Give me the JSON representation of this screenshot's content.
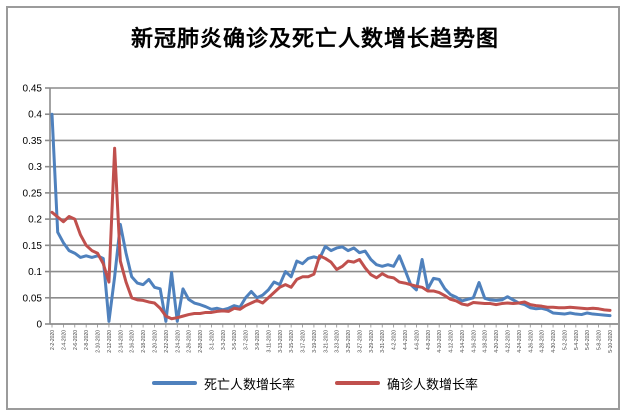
{
  "window": {
    "background": "#ffffff",
    "frame_border_color": "#9b9b9b"
  },
  "chart_data": {
    "type": "line",
    "title": "新冠肺炎确诊及死亡人数增长趋势图",
    "grid": "horizontal",
    "gridline_color": "#8c8c8c",
    "axis_color": "#8c8c8c",
    "x_tick_label_color": "#404040",
    "y_tick_label_color": "#000000",
    "legend_position": "bottom",
    "ylim": [
      0,
      0.45
    ],
    "y_ticks": [
      "0",
      "0.05",
      "0.1",
      "0.15",
      "0.2",
      "0.25",
      "0.3",
      "0.35",
      "0.4",
      "0.45"
    ],
    "x_tick_every": 2,
    "x": [
      "2-2-2020",
      "2-3-2020",
      "2-4-2020",
      "2-5-2020",
      "2-6-2020",
      "2-7-2020",
      "2-8-2020",
      "2-9-2020",
      "2-10-2020",
      "2-11-2020",
      "2-12-2020",
      "2-13-2020",
      "2-14-2020",
      "2-15-2020",
      "2-16-2020",
      "2-17-2020",
      "2-18-2020",
      "2-19-2020",
      "2-20-2020",
      "2-21-2020",
      "2-22-2020",
      "2-23-2020",
      "2-24-2020",
      "2-25-2020",
      "2-26-2020",
      "2-27-2020",
      "2-28-2020",
      "2-29-2020",
      "3-1-2020",
      "3-2-2020",
      "3-3-2020",
      "3-4-2020",
      "3-5-2020",
      "3-6-2020",
      "3-7-2020",
      "3-8-2020",
      "3-9-2020",
      "3-10-2020",
      "3-11-2020",
      "3-12-2020",
      "3-13-2020",
      "3-14-2020",
      "3-15-2020",
      "3-16-2020",
      "3-17-2020",
      "3-18-2020",
      "3-19-2020",
      "3-20-2020",
      "3-21-2020",
      "3-22-2020",
      "3-23-2020",
      "3-24-2020",
      "3-25-2020",
      "3-26-2020",
      "3-27-2020",
      "3-28-2020",
      "3-29-2020",
      "3-30-2020",
      "3-31-2020",
      "4-1-2020",
      "4-2-2020",
      "4-3-2020",
      "4-4-2020",
      "4-5-2020",
      "4-6-2020",
      "4-7-2020",
      "4-8-2020",
      "4-9-2020",
      "4-10-2020",
      "4-11-2020",
      "4-12-2020",
      "4-13-2020",
      "4-14-2020",
      "4-15-2020",
      "4-16-2020",
      "4-17-2020",
      "4-18-2020",
      "4-19-2020",
      "4-20-2020",
      "4-21-2020",
      "4-22-2020",
      "4-23-2020",
      "4-24-2020",
      "4-25-2020",
      "4-26-2020",
      "4-27-2020",
      "4-28-2020",
      "4-29-2020",
      "4-30-2020",
      "5-1-2020",
      "5-2-2020",
      "5-3-2020",
      "5-4-2020",
      "5-5-2020",
      "5-6-2020",
      "5-7-2020",
      "5-8-2020",
      "5-9-2020",
      "5-10-2020"
    ],
    "series": [
      {
        "name": "死亡人数增长率",
        "color": "#4F81BD",
        "values": [
          0.4,
          0.175,
          0.155,
          0.14,
          0.135,
          0.127,
          0.13,
          0.127,
          0.13,
          0.125,
          0.005,
          0.09,
          0.19,
          0.135,
          0.09,
          0.078,
          0.075,
          0.085,
          0.07,
          0.067,
          0.005,
          0.098,
          0.005,
          0.067,
          0.047,
          0.04,
          0.037,
          0.033,
          0.028,
          0.03,
          0.027,
          0.03,
          0.035,
          0.032,
          0.05,
          0.062,
          0.05,
          0.055,
          0.065,
          0.08,
          0.075,
          0.1,
          0.09,
          0.12,
          0.115,
          0.125,
          0.128,
          0.125,
          0.148,
          0.14,
          0.145,
          0.147,
          0.14,
          0.145,
          0.136,
          0.139,
          0.123,
          0.113,
          0.11,
          0.113,
          0.11,
          0.13,
          0.103,
          0.075,
          0.065,
          0.123,
          0.067,
          0.087,
          0.085,
          0.067,
          0.056,
          0.051,
          0.044,
          0.047,
          0.05,
          0.079,
          0.049,
          0.046,
          0.045,
          0.046,
          0.052,
          0.046,
          0.04,
          0.037,
          0.031,
          0.029,
          0.03,
          0.027,
          0.021,
          0.02,
          0.019,
          0.021,
          0.019,
          0.018,
          0.021,
          0.019,
          0.018,
          0.017,
          0.016
        ]
      },
      {
        "name": "确诊人数增长率",
        "color": "#C0504D",
        "values": [
          0.213,
          0.204,
          0.195,
          0.205,
          0.2,
          0.17,
          0.15,
          0.14,
          0.135,
          0.115,
          0.08,
          0.335,
          0.12,
          0.08,
          0.05,
          0.046,
          0.045,
          0.042,
          0.04,
          0.03,
          0.015,
          0.01,
          0.012,
          0.015,
          0.018,
          0.02,
          0.02,
          0.022,
          0.022,
          0.024,
          0.025,
          0.024,
          0.03,
          0.028,
          0.035,
          0.04,
          0.045,
          0.04,
          0.05,
          0.06,
          0.07,
          0.075,
          0.07,
          0.085,
          0.09,
          0.09,
          0.095,
          0.13,
          0.125,
          0.118,
          0.104,
          0.11,
          0.12,
          0.118,
          0.123,
          0.107,
          0.094,
          0.088,
          0.096,
          0.09,
          0.088,
          0.08,
          0.078,
          0.075,
          0.072,
          0.07,
          0.063,
          0.063,
          0.06,
          0.054,
          0.047,
          0.044,
          0.038,
          0.036,
          0.041,
          0.04,
          0.039,
          0.039,
          0.037,
          0.039,
          0.04,
          0.039,
          0.04,
          0.042,
          0.037,
          0.035,
          0.034,
          0.032,
          0.032,
          0.031,
          0.031,
          0.032,
          0.031,
          0.03,
          0.029,
          0.03,
          0.029,
          0.027,
          0.026
        ]
      }
    ]
  }
}
